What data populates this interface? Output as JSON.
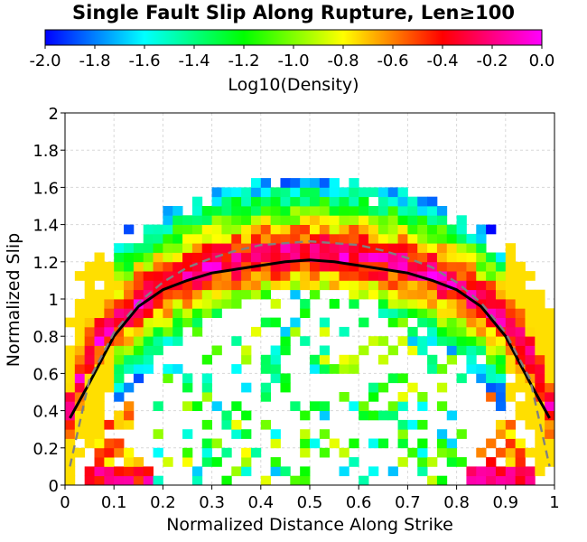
{
  "chart_data": {
    "type": "heatmap",
    "title": "Single Fault Slip Along Rupture, Len≥100",
    "xlabel": "Normalized Distance Along Strike",
    "ylabel": "Normalized Slip",
    "xlim": [
      0,
      1
    ],
    "ylim": [
      0,
      2
    ],
    "x_ticks": [
      "0",
      "0.1",
      "0.2",
      "0.3",
      "0.4",
      "0.5",
      "0.6",
      "0.7",
      "0.8",
      "0.9",
      "1"
    ],
    "y_ticks": [
      "0",
      "0.2",
      "0.4",
      "0.6",
      "0.8",
      "1",
      "1.2",
      "1.4",
      "1.6",
      "1.8",
      "2"
    ],
    "grid": true,
    "colorbar": {
      "label": "Log10(Density)",
      "range": [
        -2.0,
        0.0
      ],
      "ticks": [
        "-2.0",
        "-1.8",
        "-1.6",
        "-1.4",
        "-1.2",
        "-1.0",
        "-0.8",
        "-0.6",
        "-0.4",
        "-0.2",
        "0.0"
      ],
      "colors": [
        "#0000ff",
        "#00ffff",
        "#00ff00",
        "#ffff00",
        "#ff0000",
        "#ff00ff"
      ]
    },
    "heatmap_bins": {
      "x_bin_width": 0.02,
      "y_bin_width": 0.05
    },
    "series": [
      {
        "style": "solid",
        "color": "#000000",
        "x": [
          0.01,
          0.05,
          0.1,
          0.15,
          0.2,
          0.25,
          0.3,
          0.35,
          0.4,
          0.45,
          0.5,
          0.55,
          0.6,
          0.65,
          0.7,
          0.75,
          0.8,
          0.85,
          0.9,
          0.95,
          0.99
        ],
        "y": [
          0.36,
          0.55,
          0.8,
          0.96,
          1.05,
          1.1,
          1.14,
          1.16,
          1.18,
          1.2,
          1.21,
          1.2,
          1.18,
          1.16,
          1.14,
          1.1,
          1.05,
          0.96,
          0.8,
          0.55,
          0.36
        ]
      },
      {
        "style": "dashed",
        "color": "#808080",
        "x": [
          0.01,
          0.05,
          0.1,
          0.15,
          0.2,
          0.25,
          0.3,
          0.35,
          0.4,
          0.45,
          0.5,
          0.55,
          0.6,
          0.65,
          0.7,
          0.75,
          0.8,
          0.85,
          0.9,
          0.95,
          0.99
        ],
        "y": [
          0.1,
          0.57,
          0.82,
          0.98,
          1.09,
          1.17,
          1.22,
          1.26,
          1.29,
          1.3,
          1.31,
          1.3,
          1.29,
          1.26,
          1.22,
          1.17,
          1.09,
          0.98,
          0.82,
          0.57,
          0.1
        ]
      }
    ]
  }
}
